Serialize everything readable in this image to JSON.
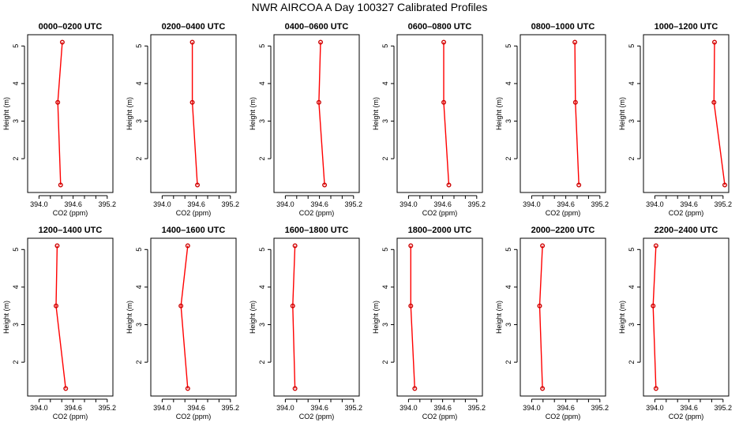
{
  "figure": {
    "title": "NWR AIRCOA A  Day 100327  Calibrated Profiles"
  },
  "style": {
    "line_color": "#ff0000",
    "marker_color": "#cc0000",
    "axis_color": "#000000",
    "background": "#ffffff"
  },
  "chart_data": [
    {
      "type": "line",
      "title": "0000–0200 UTC",
      "xlabel": "CO2 (ppm)",
      "ylabel": "Height (m)",
      "xlim": [
        393.8,
        395.3
      ],
      "ylim": [
        1.1,
        5.3
      ],
      "xticks": [
        "394.0",
        "394.6",
        "395.2"
      ],
      "yticks": [
        "2",
        "3",
        "4",
        "5"
      ],
      "grid": false,
      "series": [
        {
          "x": [
            394.41,
            394.33,
            394.38
          ],
          "y": [
            5.1,
            3.5,
            1.3
          ]
        }
      ]
    },
    {
      "type": "line",
      "title": "0200–0400 UTC",
      "xlabel": "CO2 (ppm)",
      "ylabel": "Height (m)",
      "xlim": [
        393.8,
        395.3
      ],
      "ylim": [
        1.1,
        5.3
      ],
      "xticks": [
        "394.0",
        "394.6",
        "395.2"
      ],
      "yticks": [
        "2",
        "3",
        "4",
        "5"
      ],
      "grid": false,
      "series": [
        {
          "x": [
            394.53,
            394.53,
            394.62
          ],
          "y": [
            5.1,
            3.5,
            1.3
          ]
        }
      ]
    },
    {
      "type": "line",
      "title": "0400–0600 UTC",
      "xlabel": "CO2 (ppm)",
      "ylabel": "Height (m)",
      "xlim": [
        393.8,
        395.3
      ],
      "ylim": [
        1.1,
        5.3
      ],
      "xticks": [
        "394.0",
        "394.6",
        "395.2"
      ],
      "yticks": [
        "2",
        "3",
        "4",
        "5"
      ],
      "grid": false,
      "series": [
        {
          "x": [
            394.62,
            394.59,
            394.69
          ],
          "y": [
            5.1,
            3.5,
            1.3
          ]
        }
      ]
    },
    {
      "type": "line",
      "title": "0600–0800 UTC",
      "xlabel": "CO2 (ppm)",
      "ylabel": "Height (m)",
      "xlim": [
        393.8,
        395.3
      ],
      "ylim": [
        1.1,
        5.3
      ],
      "xticks": [
        "394.0",
        "394.6",
        "395.2"
      ],
      "yticks": [
        "2",
        "3",
        "4",
        "5"
      ],
      "grid": false,
      "series": [
        {
          "x": [
            394.62,
            394.62,
            394.71
          ],
          "y": [
            5.1,
            3.5,
            1.3
          ]
        }
      ]
    },
    {
      "type": "line",
      "title": "0800–1000 UTC",
      "xlabel": "CO2 (ppm)",
      "ylabel": "Height (m)",
      "xlim": [
        393.8,
        395.3
      ],
      "ylim": [
        1.1,
        5.3
      ],
      "xticks": [
        "394.0",
        "394.6",
        "395.2"
      ],
      "yticks": [
        "2",
        "3",
        "4",
        "5"
      ],
      "grid": false,
      "series": [
        {
          "x": [
            394.76,
            394.77,
            394.83
          ],
          "y": [
            5.1,
            3.5,
            1.3
          ]
        }
      ]
    },
    {
      "type": "line",
      "title": "1000–1200 UTC",
      "xlabel": "CO2 (ppm)",
      "ylabel": "Height (m)",
      "xlim": [
        393.8,
        395.3
      ],
      "ylim": [
        1.1,
        5.3
      ],
      "xticks": [
        "394.0",
        "394.6",
        "395.2"
      ],
      "yticks": [
        "2",
        "3",
        "4",
        "5"
      ],
      "grid": false,
      "series": [
        {
          "x": [
            395.05,
            395.04,
            395.23
          ],
          "y": [
            5.1,
            3.5,
            1.3
          ]
        }
      ]
    },
    {
      "type": "line",
      "title": "1200–1400 UTC",
      "xlabel": "CO2 (ppm)",
      "ylabel": "Height (m)",
      "xlim": [
        393.8,
        395.3
      ],
      "ylim": [
        1.1,
        5.3
      ],
      "xticks": [
        "394.0",
        "394.6",
        "395.2"
      ],
      "yticks": [
        "2",
        "3",
        "4",
        "5"
      ],
      "grid": false,
      "series": [
        {
          "x": [
            394.32,
            394.3,
            394.47
          ],
          "y": [
            5.1,
            3.5,
            1.3
          ]
        }
      ]
    },
    {
      "type": "line",
      "title": "1400–1600 UTC",
      "xlabel": "CO2 (ppm)",
      "ylabel": "Height (m)",
      "xlim": [
        393.8,
        395.3
      ],
      "ylim": [
        1.1,
        5.3
      ],
      "xticks": [
        "394.0",
        "394.6",
        "395.2"
      ],
      "yticks": [
        "2",
        "3",
        "4",
        "5"
      ],
      "grid": false,
      "series": [
        {
          "x": [
            394.45,
            394.33,
            394.45
          ],
          "y": [
            5.1,
            3.5,
            1.3
          ]
        }
      ]
    },
    {
      "type": "line",
      "title": "1600–1800 UTC",
      "xlabel": "CO2 (ppm)",
      "ylabel": "Height (m)",
      "xlim": [
        393.8,
        395.3
      ],
      "ylim": [
        1.1,
        5.3
      ],
      "xticks": [
        "394.0",
        "394.6",
        "395.2"
      ],
      "yticks": [
        "2",
        "3",
        "4",
        "5"
      ],
      "grid": false,
      "series": [
        {
          "x": [
            394.17,
            394.13,
            394.17
          ],
          "y": [
            5.1,
            3.5,
            1.3
          ]
        }
      ]
    },
    {
      "type": "line",
      "title": "1800–2000 UTC",
      "xlabel": "CO2 (ppm)",
      "ylabel": "Height (m)",
      "xlim": [
        393.8,
        395.3
      ],
      "ylim": [
        1.1,
        5.3
      ],
      "xticks": [
        "394.0",
        "394.6",
        "395.2"
      ],
      "yticks": [
        "2",
        "3",
        "4",
        "5"
      ],
      "grid": false,
      "series": [
        {
          "x": [
            394.04,
            394.04,
            394.11
          ],
          "y": [
            5.1,
            3.5,
            1.3
          ]
        }
      ]
    },
    {
      "type": "line",
      "title": "2000–2200 UTC",
      "xlabel": "CO2 (ppm)",
      "ylabel": "Height (m)",
      "xlim": [
        393.8,
        395.3
      ],
      "ylim": [
        1.1,
        5.3
      ],
      "xticks": [
        "394.0",
        "394.6",
        "395.2"
      ],
      "yticks": [
        "2",
        "3",
        "4",
        "5"
      ],
      "grid": false,
      "series": [
        {
          "x": [
            394.19,
            394.14,
            394.19
          ],
          "y": [
            5.1,
            3.5,
            1.3
          ]
        }
      ]
    },
    {
      "type": "line",
      "title": "2200–2400 UTC",
      "xlabel": "CO2 (ppm)",
      "ylabel": "Height (m)",
      "xlim": [
        393.8,
        395.3
      ],
      "ylim": [
        1.1,
        5.3
      ],
      "xticks": [
        "394.0",
        "394.6",
        "395.2"
      ],
      "yticks": [
        "2",
        "3",
        "4",
        "5"
      ],
      "grid": false,
      "series": [
        {
          "x": [
            394.02,
            393.97,
            394.02
          ],
          "y": [
            5.1,
            3.5,
            1.3
          ]
        }
      ]
    }
  ]
}
